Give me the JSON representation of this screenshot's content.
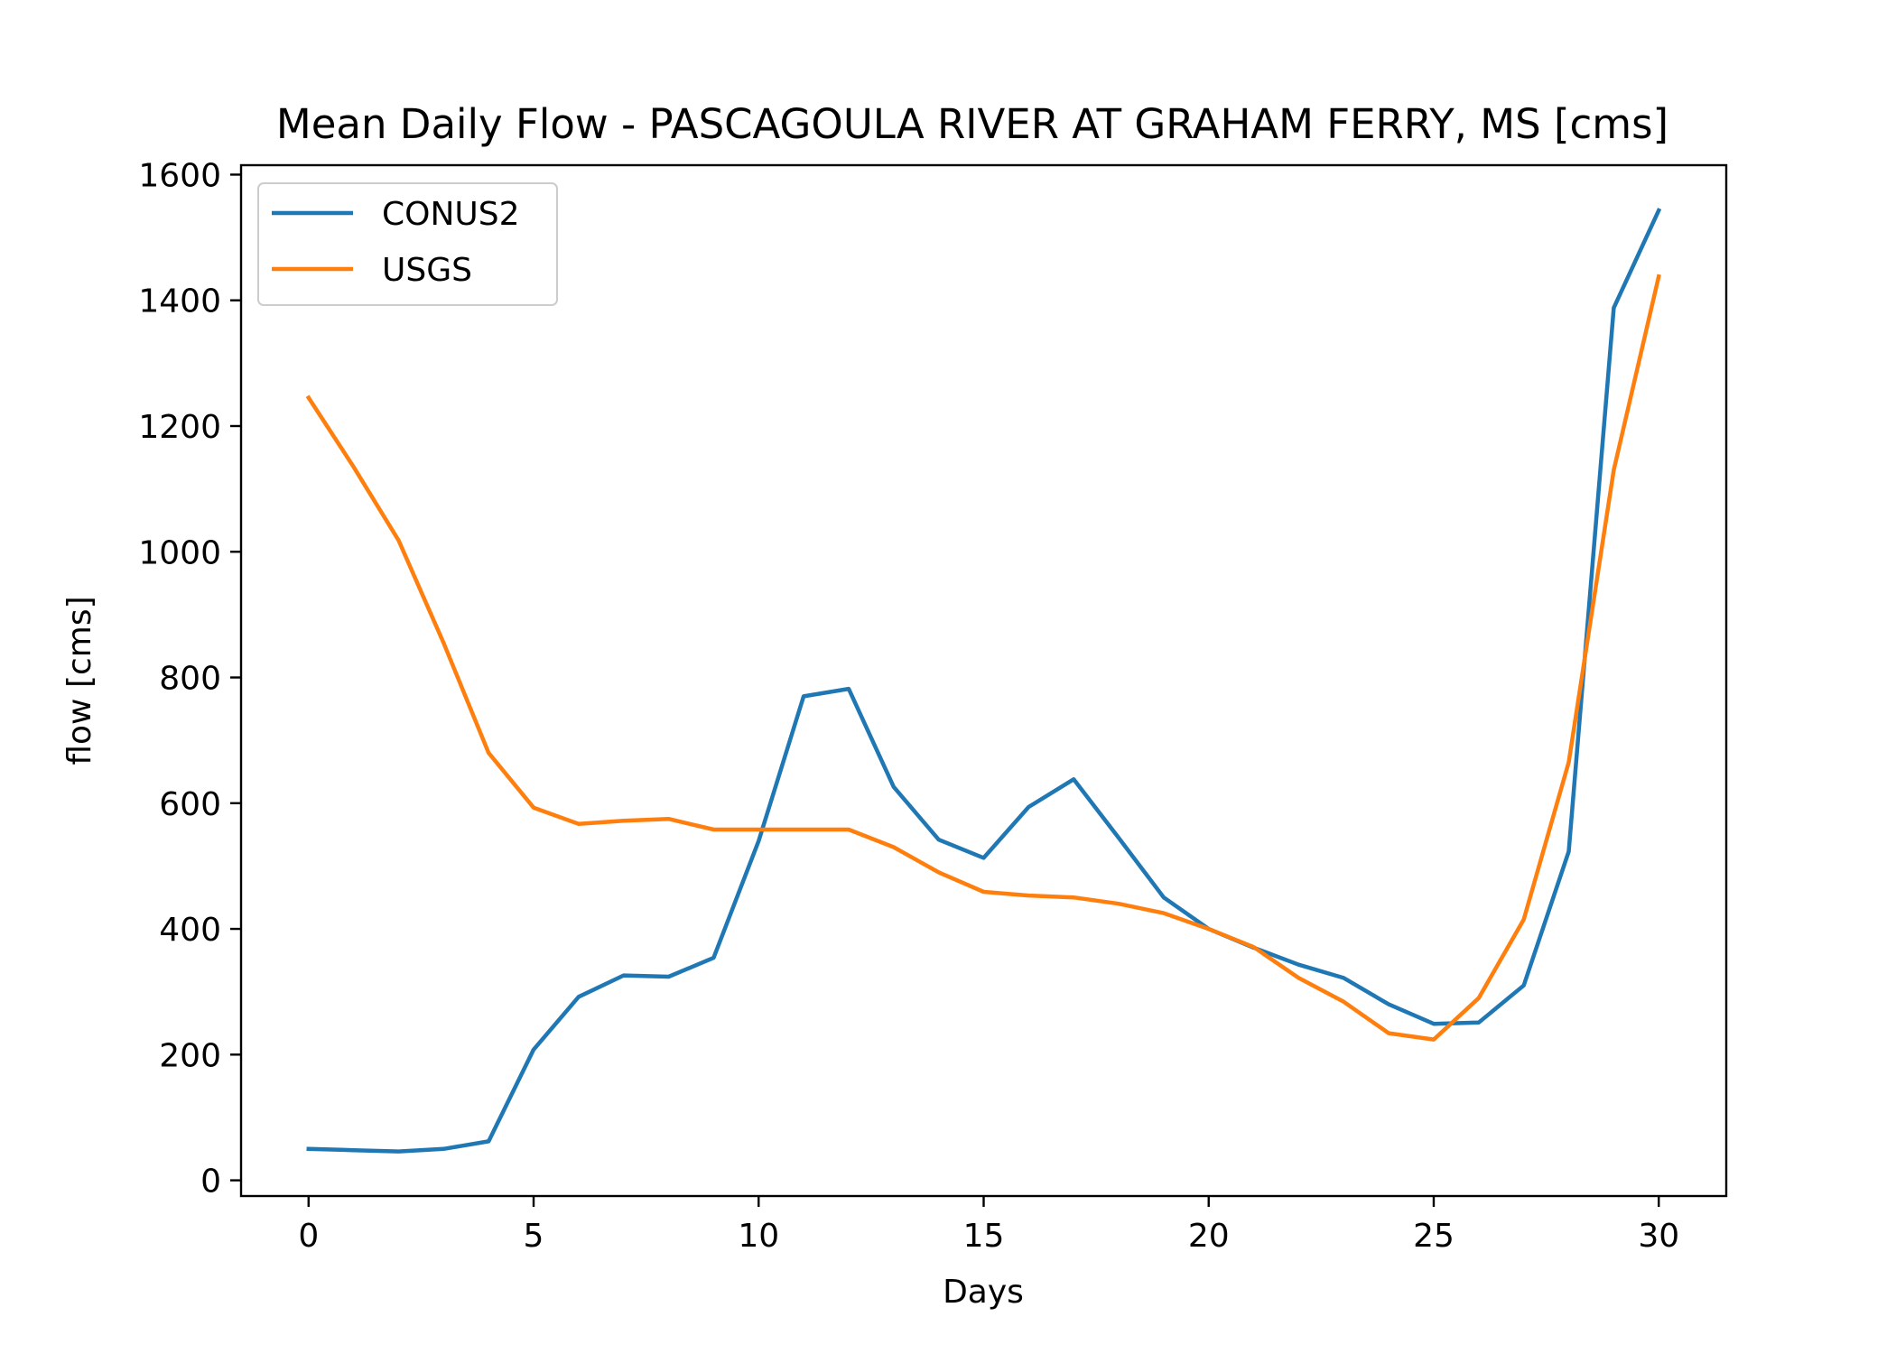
{
  "chart_data": {
    "type": "line",
    "title": "Mean Daily Flow - PASCAGOULA RIVER AT GRAHAM FERRY, MS [cms]",
    "xlabel": "Days",
    "ylabel": "flow [cms]",
    "xlim": [
      -1.5,
      31.5
    ],
    "ylim": [
      -25,
      1615
    ],
    "xticks": [
      0,
      5,
      10,
      15,
      20,
      25,
      30
    ],
    "yticks": [
      0,
      200,
      400,
      600,
      800,
      1000,
      1200,
      1400,
      1600
    ],
    "grid": false,
    "legend_position": "top-left",
    "x": [
      0,
      1,
      2,
      3,
      4,
      5,
      6,
      7,
      8,
      9,
      10,
      11,
      12,
      13,
      14,
      15,
      16,
      17,
      18,
      19,
      20,
      21,
      22,
      23,
      24,
      25,
      26,
      27,
      28,
      29,
      30
    ],
    "series": [
      {
        "name": "CONUS2",
        "color": "#1f77b4",
        "values": [
          50,
          48,
          46,
          50,
          62,
          208,
          292,
          326,
          324,
          354,
          540,
          770,
          782,
          626,
          542,
          513,
          594,
          638,
          545,
          450,
          400,
          370,
          343,
          322,
          280,
          249,
          251,
          310,
          523,
          1388,
          1543
        ]
      },
      {
        "name": "USGS",
        "color": "#ff7f0e",
        "values": [
          1245,
          1135,
          1018,
          855,
          680,
          593,
          567,
          572,
          575,
          558,
          558,
          558,
          558,
          530,
          490,
          459,
          453,
          450,
          440,
          425,
          400,
          371,
          322,
          284,
          234,
          224,
          290,
          415,
          665,
          1130,
          1438
        ]
      }
    ]
  }
}
